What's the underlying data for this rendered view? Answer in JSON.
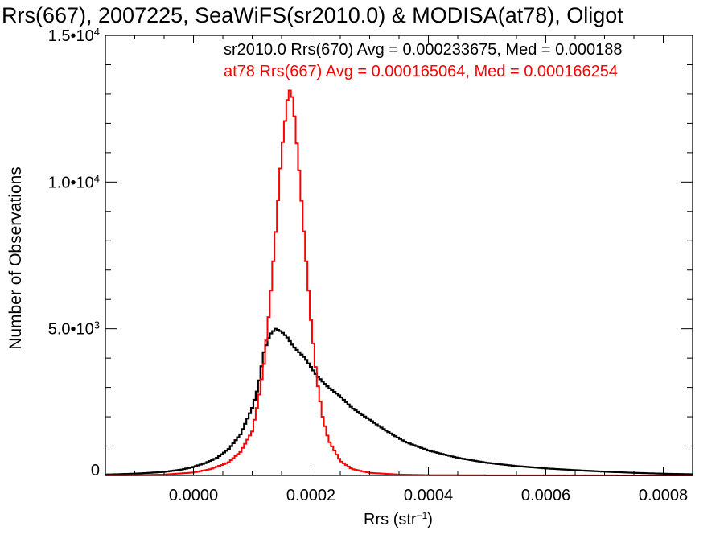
{
  "chart_data": {
    "type": "line",
    "title": "Rrs(667), 2007225, SeaWiFS(sr2010.0) & MODISA(at78), Oligot",
    "xlabel": {
      "main": "Rrs (str",
      "sup": "−1",
      "close": ")"
    },
    "ylabel": "Number of Observations",
    "xlim": [
      -0.00015,
      0.00085
    ],
    "ylim": [
      0,
      15000
    ],
    "x_ticks": [
      {
        "value": 0.0,
        "label": "0.0000"
      },
      {
        "value": 0.0002,
        "label": "0.0002"
      },
      {
        "value": 0.0004,
        "label": "0.0004"
      },
      {
        "value": 0.0006,
        "label": "0.0006"
      },
      {
        "value": 0.0008,
        "label": "0.0008"
      }
    ],
    "y_ticks": [
      {
        "value": 0,
        "base": "0",
        "exp": ""
      },
      {
        "value": 5000,
        "base": "5.0•10",
        "exp": "3"
      },
      {
        "value": 10000,
        "base": "1.0•10",
        "exp": "4"
      },
      {
        "value": 15000,
        "base": "1.5•10",
        "exp": "4"
      }
    ],
    "grid": false,
    "legend_position": "top-right",
    "series": [
      {
        "name": "sr2010.0 Rrs(670)",
        "legend_text": "sr2010.0 Rrs(670) Avg = 0.000233675, Med = 0.000188",
        "color": "#000000",
        "x": [
          -0.00015,
          -0.0001,
          -5e-05,
          -2e-05,
          0.0,
          2e-05,
          4e-05,
          6e-05,
          8e-05,
          0.0001,
          0.00011,
          0.00012,
          0.00013,
          0.00014,
          0.00015,
          0.00016,
          0.00017,
          0.00018,
          0.00019,
          0.0002,
          0.00021,
          0.00022,
          0.00023,
          0.00025,
          0.00027,
          0.0003,
          0.00033,
          0.00036,
          0.0004,
          0.00045,
          0.0005,
          0.00055,
          0.0006,
          0.00065,
          0.0007,
          0.00075,
          0.0008,
          0.00085
        ],
        "y": [
          30,
          60,
          120,
          200,
          290,
          420,
          600,
          900,
          1400,
          2300,
          3000,
          4200,
          4800,
          5000,
          4900,
          4700,
          4400,
          4200,
          4000,
          3700,
          3400,
          3200,
          3000,
          2700,
          2300,
          1900,
          1500,
          1150,
          850,
          600,
          430,
          320,
          240,
          180,
          130,
          90,
          60,
          40
        ]
      },
      {
        "name": "at78 Rrs(667)",
        "legend_text": "at78 Rrs(667) Avg = 0.000165064, Med = 0.000166254",
        "color": "#ff0000",
        "x": [
          -0.00015,
          -0.0001,
          -5e-05,
          0.0,
          3e-05,
          6e-05,
          8e-05,
          0.0001,
          0.00011,
          0.00012,
          0.00013,
          0.00014,
          0.00015,
          0.00016,
          0.000165,
          0.00017,
          0.00018,
          0.00019,
          0.0002,
          0.00021,
          0.00022,
          0.00023,
          0.00025,
          0.00027,
          0.0003,
          0.00035,
          0.0004,
          0.0005,
          0.0006,
          0.0007,
          0.0008,
          0.00085
        ],
        "y": [
          5,
          10,
          30,
          100,
          220,
          450,
          800,
          1500,
          2500,
          3800,
          5800,
          8300,
          11000,
          12800,
          13200,
          12700,
          10400,
          7800,
          5300,
          3300,
          2000,
          1200,
          500,
          220,
          90,
          30,
          12,
          5,
          3,
          2,
          1,
          1
        ]
      }
    ]
  }
}
